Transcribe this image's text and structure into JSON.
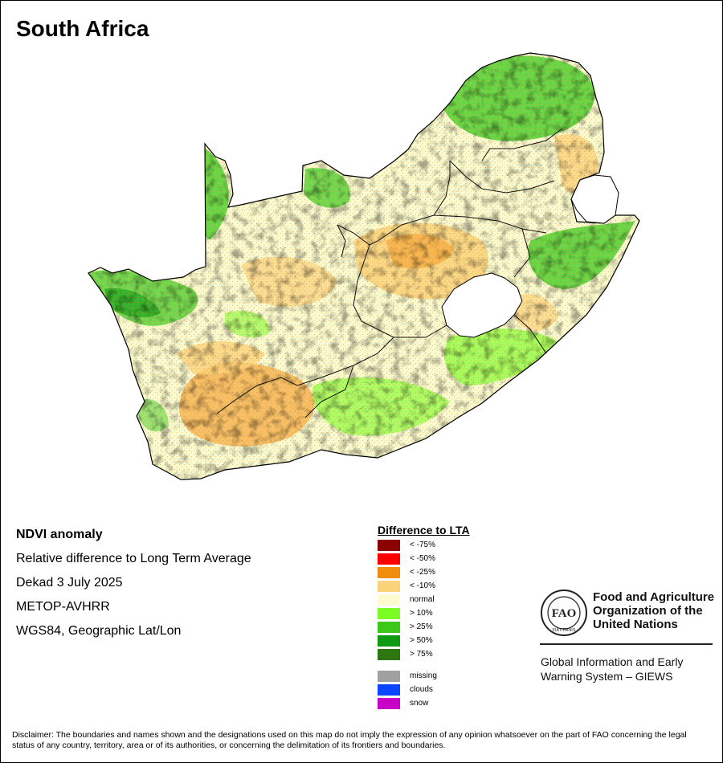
{
  "map": {
    "title": "South Africa",
    "region": "South Africa",
    "neighbour": "Lesotho"
  },
  "info": {
    "product": "NDVI anomaly",
    "description": "Relative difference to Long Term Average",
    "period": "Dekad 3 July 2025",
    "sensor": "METOP-AVHRR",
    "projection": "WGS84, Geographic Lat/Lon"
  },
  "legend": {
    "title": "Difference to LTA",
    "classes": [
      {
        "label": "< -75%",
        "color": "#8b0000"
      },
      {
        "label": "< -50%",
        "color": "#ff0000"
      },
      {
        "label": "< -25%",
        "color": "#f28c0f"
      },
      {
        "label": "< -10%",
        "color": "#fcd27a"
      },
      {
        "label": "normal",
        "color": "#fcfcd0"
      },
      {
        "label": "> 10%",
        "color": "#7cfc22"
      },
      {
        "label": "> 25%",
        "color": "#3cc81a"
      },
      {
        "label": "> 50%",
        "color": "#0f9a14"
      },
      {
        "label": "> 75%",
        "color": "#2e7610"
      }
    ],
    "extras": [
      {
        "label": "missing",
        "color": "#a0a0a0"
      },
      {
        "label": "clouds",
        "color": "#0a46ff"
      },
      {
        "label": "snow",
        "color": "#c800c8"
      }
    ]
  },
  "fao": {
    "logo_letters": "FAO",
    "logo_motto": "FIAT PANIS",
    "name_lines": [
      "Food and Agriculture",
      "Organization of the",
      "United Nations"
    ],
    "giews_lines": [
      "Global Information and Early",
      "Warning System – GIEWS"
    ]
  },
  "disclaimer": "Disclaimer: The boundaries and names shown and the designations used on this map do not imply the expression of any opinion whatsoever on the part of FAO concerning the legal status of any country, territory, area or of its authorities, or concerning the delimitation of its frontiers and boundaries."
}
